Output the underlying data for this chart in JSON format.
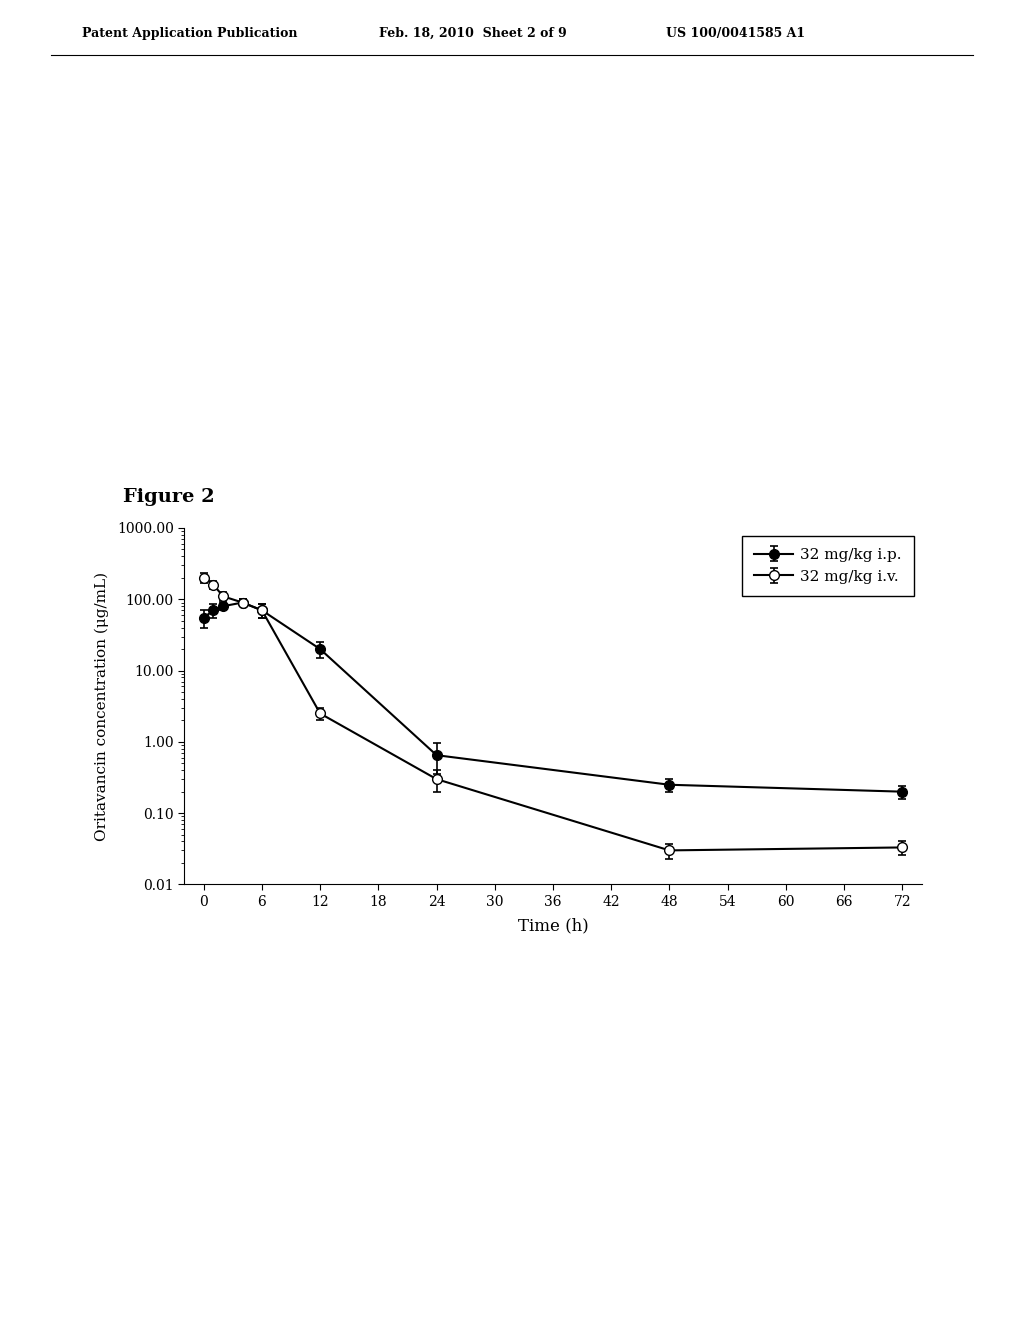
{
  "ip_x": [
    0,
    1,
    2,
    4,
    6,
    12,
    24,
    48,
    72
  ],
  "ip_y": [
    55,
    70,
    80,
    90,
    70,
    20,
    0.65,
    0.25,
    0.2
  ],
  "ip_yerr_low": [
    15,
    15,
    10,
    10,
    15,
    5,
    0.3,
    0.05,
    0.04
  ],
  "ip_yerr_high": [
    15,
    15,
    10,
    10,
    15,
    5,
    0.3,
    0.05,
    0.04
  ],
  "iv_x": [
    0,
    1,
    2,
    4,
    6,
    12,
    24,
    48,
    72
  ],
  "iv_y": [
    200,
    160,
    110,
    90,
    70,
    2.5,
    0.3,
    0.03,
    0.033
  ],
  "iv_yerr_low": [
    30,
    20,
    15,
    10,
    15,
    0.5,
    0.1,
    0.007,
    0.007
  ],
  "iv_yerr_high": [
    30,
    20,
    15,
    10,
    15,
    0.5,
    0.1,
    0.007,
    0.007
  ],
  "xlabel": "Time (h)",
  "ylabel": "Oritavancin concentration (μg/mL)",
  "legend_ip": "32 mg/kg i.p.",
  "legend_iv": "32 mg/kg i.v.",
  "figure_label": "Figure 2",
  "header_left": "Patent Application Publication",
  "header_mid": "Feb. 18, 2010  Sheet 2 of 9",
  "header_right": "US 100/0041585 A1",
  "xticks": [
    0,
    6,
    12,
    18,
    24,
    30,
    36,
    42,
    48,
    54,
    60,
    66,
    72
  ],
  "ylim_log": [
    0.01,
    1000
  ],
  "background_color": "#ffffff",
  "line_color": "#000000"
}
